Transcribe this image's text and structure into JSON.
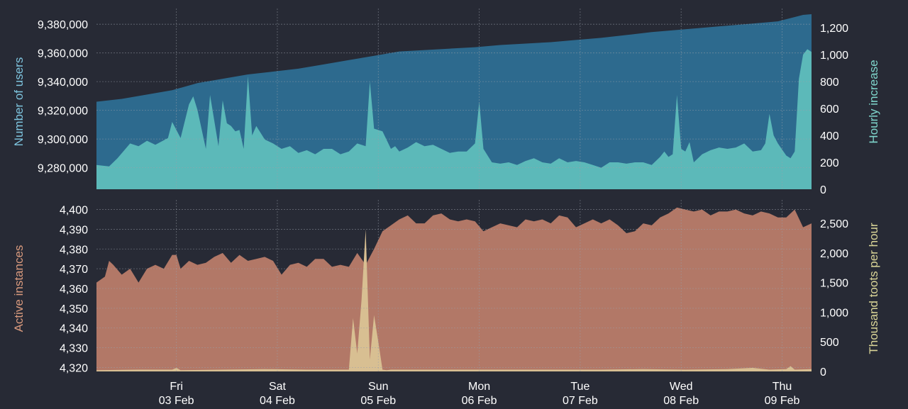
{
  "chart_data": [
    {
      "type": "area",
      "panel": "top",
      "xlabel": "",
      "ylabel_left": "Number of users",
      "ylabel_right": "Hourly increase",
      "ylim_left": [
        9265000,
        9387000
      ],
      "ylim_right": [
        0,
        1300
      ],
      "yticks_left": [
        9280000,
        9300000,
        9320000,
        9340000,
        9360000,
        9380000
      ],
      "yticks_left_labels": [
        "9,280,000",
        "9,300,000",
        "9,320,000",
        "9,340,000",
        "9,360,000",
        "9,380,000"
      ],
      "yticks_right": [
        0,
        200,
        400,
        600,
        800,
        1000,
        1200
      ],
      "yticks_right_labels": [
        "0",
        "200",
        "400",
        "600",
        "800",
        "1,000",
        "1,200"
      ],
      "colors": {
        "left_series": "#2d6a8e",
        "right_series": "#5cb9b9",
        "left_axis_text": "#7ec4de",
        "right_axis_text": "#7fd6cc"
      },
      "series": [
        {
          "axis": "left",
          "x": [
            0,
            6,
            12,
            18,
            24,
            30,
            36,
            42,
            48,
            54,
            60,
            66,
            72,
            78,
            84,
            90,
            96,
            102,
            108,
            114,
            120,
            126,
            132,
            138,
            144,
            150,
            156,
            162,
            168,
            170
          ],
          "values": [
            9326000,
            9328000,
            9331000,
            9334000,
            9339000,
            9342000,
            9345000,
            9347000,
            9349000,
            9352000,
            9355000,
            9358000,
            9361000,
            9362000,
            9363000,
            9364000,
            9365500,
            9366500,
            9367500,
            9369000,
            9370500,
            9372500,
            9374500,
            9376000,
            9377500,
            9379000,
            9380500,
            9382000,
            9386500,
            9387000
          ]
        },
        {
          "axis": "right",
          "x": [
            0,
            3,
            5,
            8,
            10,
            12,
            14,
            17,
            18,
            20,
            22,
            23,
            24,
            26,
            27,
            29,
            30,
            31,
            32,
            33,
            34,
            35,
            36,
            37,
            38,
            40,
            42,
            44,
            46,
            48,
            50,
            52,
            54,
            56,
            58,
            60,
            62,
            64,
            65,
            66,
            68,
            70,
            71,
            72,
            74,
            76,
            78,
            80,
            82,
            84,
            86,
            88,
            90,
            91,
            92,
            94,
            96,
            98,
            100,
            102,
            104,
            106,
            108,
            110,
            112,
            114,
            116,
            118,
            120,
            122,
            124,
            126,
            128,
            130,
            132,
            134,
            135,
            136,
            137,
            138,
            139,
            140,
            141,
            142,
            144,
            146,
            148,
            150,
            152,
            154,
            156,
            158,
            159,
            160,
            161,
            162,
            164,
            165,
            166,
            167,
            168,
            169,
            170
          ],
          "values": [
            180,
            170,
            230,
            340,
            320,
            360,
            330,
            380,
            500,
            380,
            630,
            690,
            590,
            300,
            700,
            320,
            660,
            490,
            470,
            430,
            440,
            300,
            840,
            400,
            470,
            370,
            340,
            300,
            320,
            270,
            290,
            260,
            300,
            300,
            260,
            280,
            340,
            320,
            800,
            450,
            430,
            300,
            320,
            280,
            310,
            350,
            320,
            330,
            300,
            270,
            280,
            280,
            340,
            650,
            300,
            200,
            190,
            200,
            180,
            210,
            230,
            200,
            190,
            230,
            200,
            210,
            200,
            180,
            160,
            200,
            200,
            190,
            200,
            200,
            180,
            240,
            280,
            240,
            260,
            700,
            300,
            280,
            350,
            200,
            260,
            290,
            310,
            300,
            310,
            340,
            280,
            290,
            340,
            560,
            400,
            340,
            250,
            230,
            280,
            820,
            1000,
            1040,
            1020
          ]
        }
      ]
    },
    {
      "type": "area",
      "panel": "bottom",
      "xlabel": "",
      "ylabel_left": "Active instances",
      "ylabel_right": "Thousand toots per hour",
      "ylim_left": [
        4318,
        4402
      ],
      "ylim_right": [
        0,
        2800
      ],
      "yticks_left": [
        4320,
        4330,
        4340,
        4350,
        4360,
        4370,
        4380,
        4390,
        4400
      ],
      "yticks_left_labels": [
        "4,320",
        "4,330",
        "4,340",
        "4,350",
        "4,360",
        "4,370",
        "4,380",
        "4,390",
        "4,400"
      ],
      "yticks_right": [
        0,
        500,
        1000,
        1500,
        2000,
        2500
      ],
      "yticks_right_labels": [
        "0",
        "500",
        "1,000",
        "1,500",
        "2,000",
        "2,500"
      ],
      "colors": {
        "left_series": "#b27867",
        "right_series": "#d8bf92",
        "left_axis_text": "#d99a7e",
        "right_axis_text": "#d9d497"
      },
      "series": [
        {
          "axis": "left",
          "x": [
            0,
            2,
            3,
            4,
            6,
            8,
            10,
            12,
            14,
            16,
            18,
            19,
            20,
            22,
            24,
            26,
            28,
            30,
            32,
            34,
            36,
            38,
            40,
            42,
            44,
            46,
            48,
            50,
            52,
            54,
            56,
            58,
            60,
            62,
            64,
            66,
            68,
            70,
            72,
            74,
            76,
            78,
            80,
            82,
            84,
            86,
            88,
            90,
            92,
            94,
            96,
            98,
            100,
            102,
            104,
            106,
            108,
            110,
            112,
            114,
            116,
            118,
            120,
            122,
            124,
            126,
            128,
            130,
            132,
            134,
            136,
            138,
            140,
            142,
            144,
            146,
            148,
            150,
            152,
            154,
            156,
            158,
            160,
            162,
            164,
            166,
            168,
            170
          ],
          "values": [
            4363,
            4366,
            4374,
            4372,
            4367,
            4370,
            4363,
            4370,
            4372,
            4370,
            4377,
            4377,
            4370,
            4374,
            4372,
            4373,
            4376,
            4378,
            4373,
            4377,
            4374,
            4375,
            4376,
            4374,
            4367,
            4372,
            4373,
            4371,
            4375,
            4375,
            4371,
            4372,
            4371,
            4378,
            4372,
            4380,
            4389,
            4392,
            4395,
            4397,
            4393,
            4393,
            4397,
            4398,
            4395,
            4394,
            4395,
            4394,
            4389,
            4391,
            4393,
            4392,
            4391,
            4395,
            4394,
            4395,
            4393,
            4397,
            4396,
            4391,
            4393,
            4395,
            4393,
            4395,
            4392,
            4388,
            4389,
            4393,
            4392,
            4396,
            4398,
            4401,
            4400,
            4399,
            4400,
            4397,
            4399,
            4399,
            4400,
            4398,
            4397,
            4399,
            4398,
            4396,
            4396,
            4400,
            4391,
            4393
          ]
        },
        {
          "axis": "right",
          "x": [
            0,
            10,
            18,
            19,
            20,
            30,
            40,
            50,
            60,
            61,
            62,
            63,
            64,
            65,
            66,
            67,
            68,
            69,
            70,
            80,
            90,
            100,
            110,
            120,
            130,
            140,
            150,
            156,
            160,
            164,
            165,
            166,
            170
          ],
          "values": [
            20,
            30,
            30,
            60,
            20,
            30,
            40,
            30,
            30,
            900,
            300,
            1200,
            2400,
            200,
            950,
            500,
            30,
            20,
            30,
            30,
            30,
            30,
            30,
            30,
            40,
            30,
            40,
            60,
            30,
            40,
            90,
            30,
            40
          ]
        }
      ]
    }
  ],
  "x_axis": {
    "days": [
      {
        "day": "Fri",
        "date": "03 Feb",
        "x": 19
      },
      {
        "day": "Sat",
        "date": "04 Feb",
        "x": 43
      },
      {
        "day": "Sun",
        "date": "05 Feb",
        "x": 67
      },
      {
        "day": "Mon",
        "date": "06 Feb",
        "x": 91
      },
      {
        "day": "Tue",
        "date": "07 Feb",
        "x": 115
      },
      {
        "day": "Wed",
        "date": "08 Feb",
        "x": 139
      },
      {
        "day": "Thu",
        "date": "09 Feb",
        "x": 163
      }
    ],
    "range": [
      0,
      170
    ]
  }
}
